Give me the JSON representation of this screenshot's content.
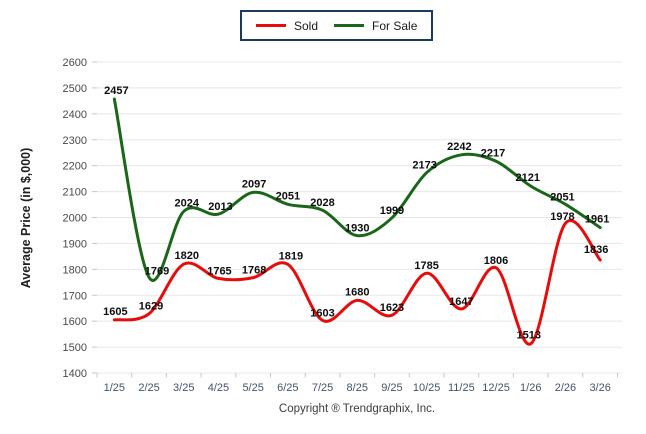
{
  "legend": {
    "items": [
      {
        "label": "Sold",
        "color": "#e60c0c"
      },
      {
        "label": "For Sale",
        "color": "#1a661a"
      }
    ],
    "border_color": "#1c3a5e"
  },
  "y_axis_title": "Average Price (in $,000)",
  "footer": {
    "copyright": "Copyright ® Trendgraphix, Inc."
  },
  "chart_data": {
    "type": "line",
    "title": "",
    "xlabel": "",
    "ylabel": "Average Price (in $,000)",
    "ylim": [
      1400,
      2600
    ],
    "ytick_step": 100,
    "y_ticks": [
      "1400",
      "1500",
      "1600",
      "1700",
      "1800",
      "1900",
      "2000",
      "2100",
      "2200",
      "2300",
      "2400",
      "2500",
      "2600"
    ],
    "x": [
      "1/25",
      "2/25",
      "3/25",
      "4/25",
      "5/25",
      "6/25",
      "7/25",
      "8/25",
      "9/25",
      "10/25",
      "11/25",
      "12/25",
      "1/26",
      "2/26",
      "3/26"
    ],
    "grid": true,
    "legend_position": "top",
    "smooth": true,
    "series": [
      {
        "name": "Sold",
        "color": "#e60c0c",
        "values": [
          1605,
          1629,
          1820,
          1765,
          1768,
          1819,
          1603,
          1680,
          1623,
          1785,
          1647,
          1806,
          1513,
          1978,
          1836
        ],
        "label_offsets": [
          [
            1,
            -5
          ],
          [
            2,
            -4
          ],
          [
            3,
            -5
          ],
          [
            1,
            -4
          ],
          [
            1,
            -4
          ],
          [
            3,
            -5
          ],
          [
            0,
            -4
          ],
          [
            0,
            -5
          ],
          [
            0,
            -4
          ],
          [
            0,
            -4
          ],
          [
            0,
            -4
          ],
          [
            0,
            -4
          ],
          [
            -2,
            -5
          ],
          [
            -3,
            -3
          ],
          [
            -4,
            -7
          ]
        ]
      },
      {
        "name": "For Sale",
        "color": "#1a661a",
        "values": [
          2457,
          1769,
          2024,
          2013,
          2097,
          2051,
          2028,
          1930,
          1999,
          2173,
          2242,
          2217,
          2121,
          2051,
          1961
        ],
        "label_offsets": [
          [
            2,
            -5
          ],
          [
            8,
            -3
          ],
          [
            3,
            -5
          ],
          [
            2,
            -4
          ],
          [
            1,
            -5
          ],
          [
            0,
            -5
          ],
          [
            0,
            -4
          ],
          [
            0,
            -4
          ],
          [
            0,
            -4
          ],
          [
            -2,
            -4
          ],
          [
            -2,
            -5
          ],
          [
            -3,
            -5
          ],
          [
            -3,
            -5
          ],
          [
            -3,
            -4
          ],
          [
            -3,
            -5
          ]
        ]
      }
    ]
  }
}
